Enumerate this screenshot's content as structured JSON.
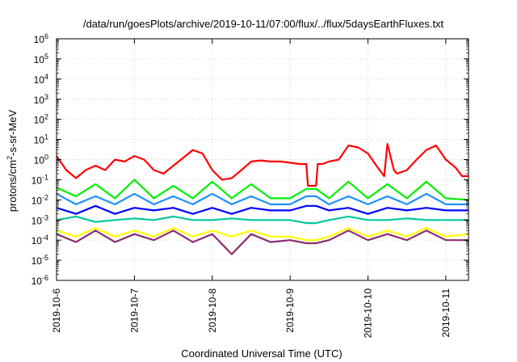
{
  "chart_data": {
    "type": "line",
    "title": "/data/run/goesPlots/archive/2019-10-11/07:00/flux/../flux/5daysEarthFluxes.txt",
    "xlabel": "Coordinated Universal Time (UTC)",
    "ylabel_parts": {
      "a": "protons/cm",
      "sup": "2",
      "b": "-s-sr-MeV"
    },
    "y_scale": "log",
    "ylim": [
      1e-06,
      1000000.0
    ],
    "y_ticks": [
      {
        "base": "10",
        "exp": "-6",
        "value": 1e-06
      },
      {
        "base": "10",
        "exp": "-5",
        "value": 1e-05
      },
      {
        "base": "10",
        "exp": "-4",
        "value": 0.0001
      },
      {
        "base": "10",
        "exp": "-3",
        "value": 0.001
      },
      {
        "base": "10",
        "exp": "-2",
        "value": 0.01
      },
      {
        "base": "10",
        "exp": "-1",
        "value": 0.1
      },
      {
        "base": "10",
        "exp": "0",
        "value": 1
      },
      {
        "base": "10",
        "exp": "1",
        "value": 10
      },
      {
        "base": "10",
        "exp": "2",
        "value": 100
      },
      {
        "base": "10",
        "exp": "3",
        "value": 1000
      },
      {
        "base": "10",
        "exp": "4",
        "value": 10000
      },
      {
        "base": "10",
        "exp": "5",
        "value": 100000
      },
      {
        "base": "10",
        "exp": "6",
        "value": 1000000
      }
    ],
    "xlim": [
      "2019-10-06T00:00",
      "2019-10-11T07:00"
    ],
    "x_ticks": [
      {
        "label": "2019-10-6",
        "value": "2019-10-06T00:00"
      },
      {
        "label": "2019-10-7",
        "value": "2019-10-07T00:00"
      },
      {
        "label": "2019-10-8",
        "value": "2019-10-08T00:00"
      },
      {
        "label": "2019-10-9",
        "value": "2019-10-09T00:00"
      },
      {
        "label": "2019-10-10",
        "value": "2019-10-10T00:00"
      },
      {
        "label": "2019-10-11",
        "value": "2019-10-11T00:00"
      }
    ],
    "grid": true,
    "series": [
      {
        "color": "#ff0000",
        "x": [
          "2019-10-06T00:00",
          "2019-10-06T03:00",
          "2019-10-06T06:00",
          "2019-10-06T09:00",
          "2019-10-06T12:00",
          "2019-10-06T15:00",
          "2019-10-06T18:00",
          "2019-10-06T21:00",
          "2019-10-07T00:00",
          "2019-10-07T03:00",
          "2019-10-07T06:00",
          "2019-10-07T09:00",
          "2019-10-07T12:00",
          "2019-10-07T15:00",
          "2019-10-07T18:00",
          "2019-10-07T21:00",
          "2019-10-08T00:00",
          "2019-10-08T03:00",
          "2019-10-08T06:00",
          "2019-10-08T09:00",
          "2019-10-08T12:00",
          "2019-10-08T15:00",
          "2019-10-08T18:00",
          "2019-10-08T21:00",
          "2019-10-09T00:00",
          "2019-10-09T03:00",
          "2019-10-09T05:00",
          "2019-10-09T05:30",
          "2019-10-09T08:00",
          "2019-10-09T08:30",
          "2019-10-09T10:00",
          "2019-10-09T12:00",
          "2019-10-09T15:00",
          "2019-10-09T18:00",
          "2019-10-09T21:00",
          "2019-10-10T00:00",
          "2019-10-10T03:00",
          "2019-10-10T05:00",
          "2019-10-10T06:00",
          "2019-10-10T08:00",
          "2019-10-10T09:00",
          "2019-10-10T12:00",
          "2019-10-10T15:00",
          "2019-10-10T18:00",
          "2019-10-10T21:00",
          "2019-10-11T00:00",
          "2019-10-11T03:00",
          "2019-10-11T05:00",
          "2019-10-11T07:00"
        ],
        "y": [
          1.5,
          0.3,
          0.12,
          0.3,
          0.5,
          0.3,
          1.0,
          0.8,
          1.5,
          1.0,
          0.3,
          0.2,
          0.5,
          1.2,
          3.0,
          2.0,
          0.3,
          0.1,
          0.12,
          0.3,
          0.8,
          0.9,
          0.8,
          0.8,
          0.7,
          0.6,
          0.6,
          0.05,
          0.05,
          0.6,
          0.6,
          0.8,
          1.0,
          5.0,
          4.0,
          2.0,
          0.4,
          0.15,
          6.0,
          0.3,
          0.2,
          0.3,
          1.0,
          3.0,
          5.0,
          1.0,
          0.4,
          0.15,
          0.15
        ]
      },
      {
        "color": "#00ee00",
        "x": [
          "2019-10-06T00:00",
          "2019-10-06T06:00",
          "2019-10-06T12:00",
          "2019-10-06T18:00",
          "2019-10-07T00:00",
          "2019-10-07T06:00",
          "2019-10-07T12:00",
          "2019-10-07T18:00",
          "2019-10-08T00:00",
          "2019-10-08T06:00",
          "2019-10-08T12:00",
          "2019-10-08T18:00",
          "2019-10-09T00:00",
          "2019-10-09T05:00",
          "2019-10-09T08:00",
          "2019-10-09T12:00",
          "2019-10-09T18:00",
          "2019-10-10T00:00",
          "2019-10-10T06:00",
          "2019-10-10T12:00",
          "2019-10-10T18:00",
          "2019-10-11T00:00",
          "2019-10-11T07:00"
        ],
        "y": [
          0.04,
          0.015,
          0.06,
          0.012,
          0.1,
          0.012,
          0.05,
          0.012,
          0.08,
          0.012,
          0.06,
          0.012,
          0.012,
          0.035,
          0.035,
          0.012,
          0.08,
          0.012,
          0.06,
          0.012,
          0.08,
          0.012,
          0.01
        ]
      },
      {
        "color": "#1e90ff",
        "x": [
          "2019-10-06T00:00",
          "2019-10-06T06:00",
          "2019-10-06T12:00",
          "2019-10-06T18:00",
          "2019-10-07T00:00",
          "2019-10-07T06:00",
          "2019-10-07T12:00",
          "2019-10-07T18:00",
          "2019-10-08T00:00",
          "2019-10-08T06:00",
          "2019-10-08T12:00",
          "2019-10-08T18:00",
          "2019-10-09T00:00",
          "2019-10-09T05:00",
          "2019-10-09T08:00",
          "2019-10-09T12:00",
          "2019-10-09T18:00",
          "2019-10-10T00:00",
          "2019-10-10T06:00",
          "2019-10-10T12:00",
          "2019-10-10T18:00",
          "2019-10-11T00:00",
          "2019-10-11T07:00"
        ],
        "y": [
          0.02,
          0.006,
          0.015,
          0.006,
          0.02,
          0.006,
          0.015,
          0.006,
          0.02,
          0.006,
          0.015,
          0.006,
          0.006,
          0.015,
          0.015,
          0.006,
          0.015,
          0.006,
          0.015,
          0.006,
          0.02,
          0.006,
          0.006
        ]
      },
      {
        "color": "#0000ff",
        "x": [
          "2019-10-06T00:00",
          "2019-10-06T06:00",
          "2019-10-06T12:00",
          "2019-10-06T18:00",
          "2019-10-07T00:00",
          "2019-10-07T06:00",
          "2019-10-07T12:00",
          "2019-10-07T18:00",
          "2019-10-08T00:00",
          "2019-10-08T06:00",
          "2019-10-08T12:00",
          "2019-10-08T18:00",
          "2019-10-09T00:00",
          "2019-10-09T05:00",
          "2019-10-09T08:00",
          "2019-10-09T12:00",
          "2019-10-09T18:00",
          "2019-10-10T00:00",
          "2019-10-10T06:00",
          "2019-10-10T12:00",
          "2019-10-10T18:00",
          "2019-10-11T00:00",
          "2019-10-11T07:00"
        ],
        "y": [
          0.004,
          0.002,
          0.005,
          0.002,
          0.004,
          0.003,
          0.004,
          0.002,
          0.004,
          0.002,
          0.004,
          0.003,
          0.003,
          0.005,
          0.005,
          0.003,
          0.004,
          0.002,
          0.004,
          0.003,
          0.004,
          0.003,
          0.003
        ]
      },
      {
        "color": "#00c8a0",
        "x": [
          "2019-10-06T00:00",
          "2019-10-06T06:00",
          "2019-10-06T12:00",
          "2019-10-06T18:00",
          "2019-10-07T00:00",
          "2019-10-07T06:00",
          "2019-10-07T12:00",
          "2019-10-07T18:00",
          "2019-10-08T00:00",
          "2019-10-08T06:00",
          "2019-10-08T12:00",
          "2019-10-08T18:00",
          "2019-10-09T00:00",
          "2019-10-09T05:00",
          "2019-10-09T08:00",
          "2019-10-09T12:00",
          "2019-10-09T18:00",
          "2019-10-10T00:00",
          "2019-10-10T06:00",
          "2019-10-10T12:00",
          "2019-10-10T18:00",
          "2019-10-11T00:00",
          "2019-10-11T07:00"
        ],
        "y": [
          0.001,
          0.0015,
          0.0008,
          0.001,
          0.0012,
          0.001,
          0.0015,
          0.001,
          0.001,
          0.0012,
          0.001,
          0.001,
          0.001,
          0.0007,
          0.0007,
          0.001,
          0.0015,
          0.001,
          0.001,
          0.0012,
          0.001,
          0.001,
          0.001
        ]
      },
      {
        "color": "#ffff00",
        "x": [
          "2019-10-06T00:00",
          "2019-10-06T06:00",
          "2019-10-06T12:00",
          "2019-10-06T18:00",
          "2019-10-07T00:00",
          "2019-10-07T06:00",
          "2019-10-07T12:00",
          "2019-10-07T18:00",
          "2019-10-08T00:00",
          "2019-10-08T06:00",
          "2019-10-08T12:00",
          "2019-10-08T18:00",
          "2019-10-09T00:00",
          "2019-10-09T05:00",
          "2019-10-09T08:00",
          "2019-10-09T12:00",
          "2019-10-09T18:00",
          "2019-10-10T00:00",
          "2019-10-10T06:00",
          "2019-10-10T12:00",
          "2019-10-10T18:00",
          "2019-10-11T00:00",
          "2019-10-11T07:00"
        ],
        "y": [
          0.0003,
          0.00015,
          0.0004,
          0.00015,
          0.0003,
          0.00015,
          0.0004,
          0.00015,
          0.0003,
          0.00015,
          0.0003,
          0.00015,
          0.00015,
          0.0001,
          0.0001,
          0.00015,
          0.0004,
          0.00015,
          0.0003,
          0.00015,
          0.0004,
          0.00015,
          0.0002
        ]
      },
      {
        "color": "#8b2d6e",
        "x": [
          "2019-10-06T00:00",
          "2019-10-06T06:00",
          "2019-10-06T12:00",
          "2019-10-06T18:00",
          "2019-10-07T00:00",
          "2019-10-07T06:00",
          "2019-10-07T12:00",
          "2019-10-07T18:00",
          "2019-10-08T00:00",
          "2019-10-08T06:00",
          "2019-10-08T12:00",
          "2019-10-08T18:00",
          "2019-10-09T00:00",
          "2019-10-09T05:00",
          "2019-10-09T08:00",
          "2019-10-09T12:00",
          "2019-10-09T18:00",
          "2019-10-10T00:00",
          "2019-10-10T06:00",
          "2019-10-10T12:00",
          "2019-10-10T18:00",
          "2019-10-11T00:00",
          "2019-10-11T07:00"
        ],
        "y": [
          0.0002,
          8e-05,
          0.0003,
          8e-05,
          0.0002,
          0.0001,
          0.0003,
          8e-05,
          0.0002,
          2e-05,
          0.0002,
          8e-05,
          0.0001,
          7e-05,
          7e-05,
          0.0001,
          0.0003,
          0.0001,
          0.0002,
          0.0001,
          0.0003,
          0.0001,
          0.0001
        ]
      }
    ]
  }
}
